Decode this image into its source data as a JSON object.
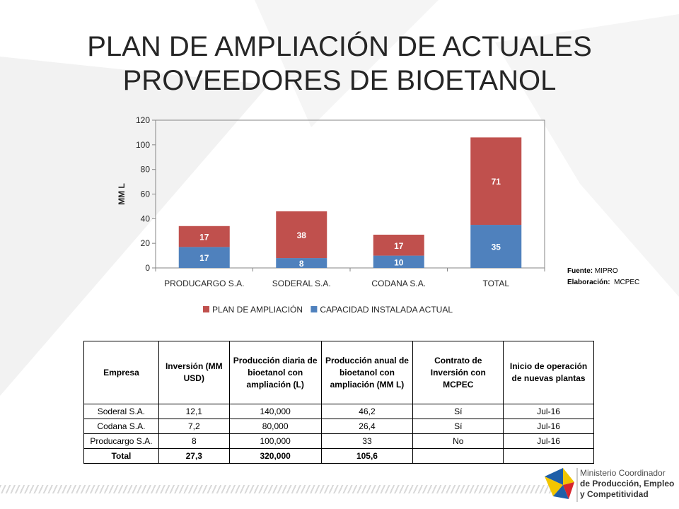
{
  "title": {
    "line1": "PLAN DE AMPLIACIÓN DE ACTUALES",
    "line2": "PROVEEDORES DE BIOETANOL"
  },
  "chart_data": {
    "type": "bar",
    "stacked": true,
    "categories": [
      "PRODUCARGO S.A.",
      "SODERAL S.A.",
      "CODANA S.A.",
      "TOTAL"
    ],
    "series": [
      {
        "name": "CAPACIDAD INSTALADA ACTUAL",
        "values": [
          17,
          8,
          10,
          35
        ],
        "color": "#4F81BD"
      },
      {
        "name": "PLAN DE AMPLIACIÓN",
        "values": [
          17,
          38,
          17,
          71
        ],
        "color": "#C0504D"
      }
    ],
    "legend_order": [
      "PLAN DE AMPLIACIÓN",
      "CAPACIDAD INSTALADA ACTUAL"
    ],
    "ylabel": "MM L",
    "ylim": [
      0,
      120
    ],
    "yticks": [
      0,
      20,
      40,
      60,
      80,
      100,
      120
    ],
    "grid": false,
    "legend_position": "bottom"
  },
  "source": {
    "fuente_label": "Fuente:",
    "fuente_value": "MIPRO",
    "elaboracion_label": "Elaboración:",
    "elaboracion_value": "MCPEC"
  },
  "table": {
    "headers": {
      "empresa": "Empresa",
      "inversion": "Inversión (MM USD)",
      "prod_diaria": "Producción diaria de bioetanol con ampliación (L)",
      "prod_anual": "Producción anual de bioetanol con ampliación (MM L)",
      "contrato": "Contrato de Inversión con MCPEC",
      "inicio": "Inicio de operación de nuevas plantas"
    },
    "rows": [
      {
        "empresa": "Soderal S.A.",
        "inversion": "12,1",
        "prod_diaria": "140,000",
        "prod_anual": "46,2",
        "contrato": "Sí",
        "inicio": "Jul-16"
      },
      {
        "empresa": "Codana S.A.",
        "inversion": "7,2",
        "prod_diaria": "80,000",
        "prod_anual": "26,4",
        "contrato": "Sí",
        "inicio": "Jul-16"
      },
      {
        "empresa": "Producargo S.A.",
        "inversion": "8",
        "prod_diaria": "100,000",
        "prod_anual": "33",
        "contrato": "No",
        "inicio": "Jul-16"
      }
    ],
    "total": {
      "empresa": "Total",
      "inversion": "27,3",
      "prod_diaria": "320,000",
      "prod_anual": "105,6",
      "contrato": "",
      "inicio": ""
    }
  },
  "logo": {
    "line1": "Ministerio Coordinador",
    "line2": "de Producción, Empleo",
    "line3": "y Competitividad"
  }
}
